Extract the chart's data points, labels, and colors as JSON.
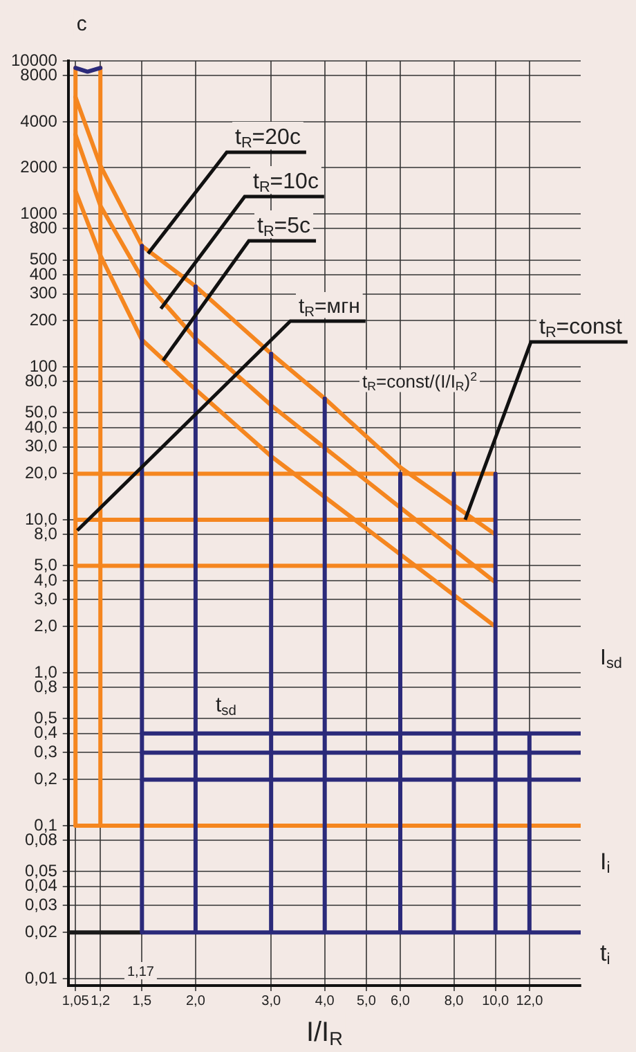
{
  "chart_data": {
    "type": "line",
    "ylabel": "с",
    "xlabel": "I/I$_{R}$",
    "log": "xy",
    "grid": true,
    "legend": false,
    "marker": "none",
    "line_style": "solid",
    "xlim": [
      1.01,
      15.8
    ],
    "ylim": [
      0.009,
      10000
    ],
    "xticks": [
      {
        "value": 1.05,
        "label": "1,05"
      },
      {
        "value": 1.2,
        "label": "1,2"
      },
      {
        "value": 1.5,
        "label": "1,5"
      },
      {
        "value": 2,
        "label": "2,0"
      },
      {
        "value": 3,
        "label": "3,0"
      },
      {
        "value": 4,
        "label": "4,0"
      },
      {
        "value": 5,
        "label": "5,0"
      },
      {
        "value": 6,
        "label": "6,0"
      },
      {
        "value": 8,
        "label": "8,0"
      },
      {
        "value": 10,
        "label": "10,0"
      },
      {
        "value": 12,
        "label": "12,0"
      }
    ],
    "yticks": [
      10000,
      8000,
      4000,
      2000,
      1000,
      800,
      500,
      400,
      300,
      200,
      100,
      {
        "value": 80,
        "label": "80,0"
      },
      {
        "value": 50,
        "label": "50,0"
      },
      {
        "value": 40,
        "label": "40,0"
      },
      {
        "value": 30,
        "label": "30,0"
      },
      {
        "value": 20,
        "label": "20,0"
      },
      {
        "value": 10,
        "label": "10,0"
      },
      {
        "value": 8,
        "label": "8,0"
      },
      {
        "value": 5,
        "label": "5,0"
      },
      {
        "value": 4,
        "label": "4,0"
      },
      {
        "value": 3,
        "label": "3,0"
      },
      {
        "value": 2,
        "label": "2,0"
      },
      {
        "value": 1,
        "label": "1,0"
      },
      {
        "value": 0.8,
        "label": "0,8"
      },
      {
        "value": 0.5,
        "label": "0,5"
      },
      {
        "value": 0.4,
        "label": "0,4"
      },
      {
        "value": 0.3,
        "label": "0,3"
      },
      {
        "value": 0.2,
        "label": "0,2"
      },
      {
        "value": 0.1,
        "label": "0,1"
      },
      {
        "value": 0.08,
        "label": "0,08"
      },
      {
        "value": 0.05,
        "label": "0,05"
      },
      {
        "value": 0.04,
        "label": "0,04"
      },
      {
        "value": 0.03,
        "label": "0,03"
      },
      {
        "value": 0.02,
        "label": "0,02"
      },
      {
        "value": 0.01,
        "label": "0,01"
      }
    ],
    "series": [
      {
        "color": "#f5861f",
        "x": [
          1.05,
          1.05
        ],
        "values": [
          9000,
          0.1
        ]
      },
      {
        "color": "#f5861f",
        "x": [
          1.2,
          1.2
        ],
        "values": [
          9000,
          0.1
        ]
      },
      {
        "color": "#f5861f",
        "x": [
          1.05,
          1.2,
          1.5,
          2,
          3,
          4,
          6,
          10
        ],
        "values": [
          5800,
          2070,
          617,
          336,
          122,
          62,
          22,
          8
        ]
      },
      {
        "color": "#f5861f",
        "x": [
          1.05,
          1.2,
          1.5,
          2,
          3,
          6,
          10
        ],
        "values": [
          3300,
          1130,
          380,
          153,
          56,
          12,
          3.9
        ]
      },
      {
        "color": "#f5861f",
        "x": [
          1.05,
          1.2,
          1.5,
          2,
          3,
          10
        ],
        "values": [
          1410,
          535,
          150,
          71,
          26,
          2
        ]
      },
      {
        "color": "#f5861f",
        "x": [
          1.05,
          10
        ],
        "values": [
          20,
          20
        ]
      },
      {
        "color": "#f5861f",
        "x": [
          1.05,
          10
        ],
        "values": [
          10,
          10
        ]
      },
      {
        "color": "#f5861f",
        "x": [
          1.05,
          10
        ],
        "values": [
          5,
          5
        ]
      },
      {
        "color": "#f5861f",
        "x": [
          1.05,
          15.8
        ],
        "values": [
          0.1,
          0.1
        ]
      },
      {
        "color": "#2b2a7a",
        "x": [
          1.5,
          15.8
        ],
        "values": [
          0.4,
          0.4
        ]
      },
      {
        "color": "#2b2a7a",
        "x": [
          1.5,
          15.8
        ],
        "values": [
          0.3,
          0.3
        ]
      },
      {
        "color": "#2b2a7a",
        "x": [
          1.5,
          15.8
        ],
        "values": [
          0.2,
          0.2
        ]
      },
      {
        "color": "#2b2a7a",
        "x": [
          1.5,
          15.8
        ],
        "values": [
          0.02,
          0.02
        ]
      },
      {
        "color": "#1a1a1a",
        "x": [
          1.01,
          1.5
        ],
        "values": [
          0.02,
          0.02
        ]
      },
      {
        "color": "#2b2a7a",
        "x": [
          1.5,
          1.5
        ],
        "values": [
          617,
          0.02
        ]
      },
      {
        "color": "#2b2a7a",
        "x": [
          2,
          2
        ],
        "values": [
          336,
          0.02
        ]
      },
      {
        "color": "#2b2a7a",
        "x": [
          3,
          3
        ],
        "values": [
          122,
          0.02
        ]
      },
      {
        "color": "#2b2a7a",
        "x": [
          4,
          4
        ],
        "values": [
          62,
          0.02
        ]
      },
      {
        "color": "#2b2a7a",
        "x": [
          6,
          6
        ],
        "values": [
          20,
          0.02
        ]
      },
      {
        "color": "#2b2a7a",
        "x": [
          8,
          8
        ],
        "values": [
          20,
          0.02
        ]
      },
      {
        "color": "#2b2a7a",
        "x": [
          10,
          10
        ],
        "values": [
          20,
          0.02
        ]
      },
      {
        "color": "#2b2a7a",
        "x": [
          12,
          12
        ],
        "values": [
          0.4,
          0.02
        ]
      },
      {
        "color": "#2b2a7a",
        "x": [
          1.05,
          1.12,
          1.2
        ],
        "values": [
          9000,
          8500,
          9000
        ]
      }
    ],
    "annotations": [
      {
        "text": "t$_{R}$=20с",
        "x": 1.55,
        "y": 550
      },
      {
        "text": "t$_{R}$=10с",
        "x": 1.66,
        "y": 240
      },
      {
        "text": "t$_{R}$=5с",
        "x": 1.68,
        "y": 110
      },
      {
        "text": "t$_{R}$=мгн",
        "x": 1.06,
        "y": 8.5
      },
      {
        "text": "t$_{R}$=const",
        "x": 8.5,
        "y": 10
      },
      "t$_{R}$=const/(I/I$_{R}$)$^{2}$",
      "t$_{sd}$",
      "I$_{sd}$",
      "I$_{i}$",
      "t$_{i}$",
      "1,17"
    ]
  }
}
